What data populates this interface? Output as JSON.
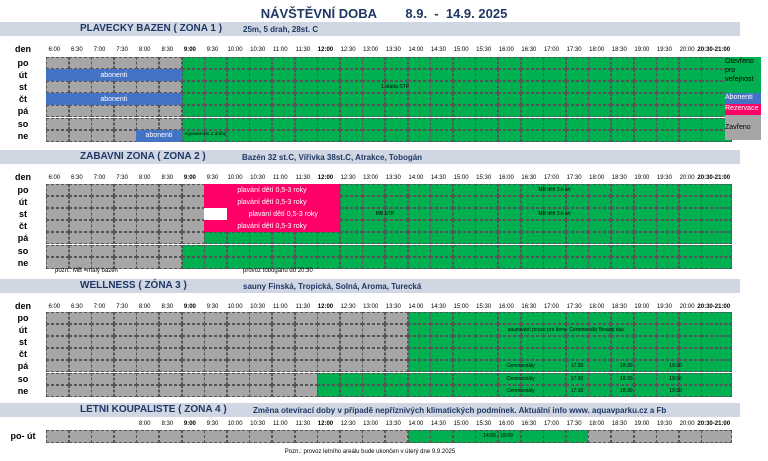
{
  "header": {
    "title": "NÁVŠTĚVNÍ DOBA        8.9.  -  14.9. 2025"
  },
  "zone1": {
    "title": "PLAVECKY BAZEN  ( ZONA 1 )",
    "subtitle": "25m, 5 drah, 28st. C",
    "den": "den",
    "days": [
      "po",
      "út",
      "st",
      "čt",
      "pá",
      "so",
      "ne"
    ],
    "times": [
      "6:00",
      "6:30",
      "7:00",
      "7:30",
      "8:00",
      "8:30",
      "9:00",
      "9:30",
      "10:00",
      "10:30",
      "11:00",
      "11:30",
      "12:00",
      "12:30",
      "13:00",
      "13:30",
      "14:00",
      "14:30",
      "15:00",
      "15:30",
      "16:00",
      "16:30",
      "17:00",
      "17:30",
      "18:00",
      "18:30",
      "19:00",
      "19:30",
      "20:00",
      "20:30-21:00"
    ],
    "abonenti": "abonenti",
    "abonenti_ne": "abonenti",
    "drahy": "1 dráha STP",
    "aquaaerobic": "Aquaaerobic 2 dráhy"
  },
  "legend": {
    "open": "Otevřeno pro veřejnost",
    "abonenti": "Abonenti",
    "rezervace": "Rezervace",
    "closed": "Zavřeno"
  },
  "zone2": {
    "title": "ZABAVNI ZONA  ( ZONA 2 )",
    "subtitle": "Bazén 32 st.C, Vířivka 38st.C, Atrakce, Tobogán",
    "den": "den",
    "days": [
      "po",
      "út",
      "st",
      "čt",
      "pá",
      "so",
      "ne"
    ],
    "times": [
      "6:00",
      "6:30",
      "7:00",
      "7:30",
      "8:00",
      "8:30",
      "9:00",
      "9:30",
      "10:00",
      "10:30",
      "11:00",
      "11:30",
      "12:00",
      "12:30",
      "13:00",
      "13:30",
      "14:00",
      "14:30",
      "15:00",
      "15:30",
      "16:00",
      "16:30",
      "17:00",
      "17:30",
      "18:00",
      "18:30",
      "19:00",
      "19:30",
      "20:00",
      "20:30-21:00"
    ],
    "plavani": "plavání dětí 0,5-3 roky",
    "mb": "MB děti 3-6 let",
    "mb_stp": "MB STP",
    "note1": "pozn.: MB =malý bazén",
    "note2": "provoz tobogánu do 20:30"
  },
  "zone3": {
    "title": "WELLNESS  ( ZÓNA 3 )",
    "subtitle": "sauny Finská, Tropická, Solná, Aroma, Turecká",
    "den": "den",
    "days": [
      "po",
      "út",
      "st",
      "čt",
      "pá",
      "so",
      "ne"
    ],
    "times": [
      "6:00",
      "6:30",
      "7:00",
      "7:30",
      "8:00",
      "8:30",
      "9:00",
      "9:30",
      "10:00",
      "10:30",
      "11:00",
      "11:30",
      "12:00",
      "12:30",
      "13:00",
      "13:30",
      "14:00",
      "14:30",
      "15:00",
      "15:30",
      "16:00",
      "16:30",
      "17:00",
      "17:30",
      "18:00",
      "18:30",
      "19:00",
      "19:30",
      "20:00",
      "20:30-21:00"
    ],
    "women": "saunování pouze pro ženy- Ceremoniály Beauty day",
    "cer": "Ceremoniály",
    "t1": "17:30",
    "t2": "18:30",
    "t3": "19:30"
  },
  "zone4": {
    "title": "LETNI KOUPALISTE ( ZONA 4 )",
    "subtitle": "Změna otevírací doby v případě nepříznivých klimatických podmínek. Aktuální info www. aquavparku.cz a Fb",
    "times": [
      "8:00",
      "8:30",
      "9:00",
      "9:30",
      "10:00",
      "10:30",
      "11:00",
      "11:30",
      "12:00",
      "12:30",
      "13:00",
      "13:30",
      "14:00",
      "14:30",
      "15:00",
      "15:30",
      "16:00",
      "16:30",
      "17:00",
      "17:30",
      "18:00",
      "18:30",
      "19:00",
      "19:30",
      "20:00",
      "20:30-21:00"
    ],
    "day": "po- út",
    "hours": "14:00 - 18:00",
    "note": "Pozn.: provoz letního areálu bude ukončen v úterý dne 9.9.2025"
  }
}
